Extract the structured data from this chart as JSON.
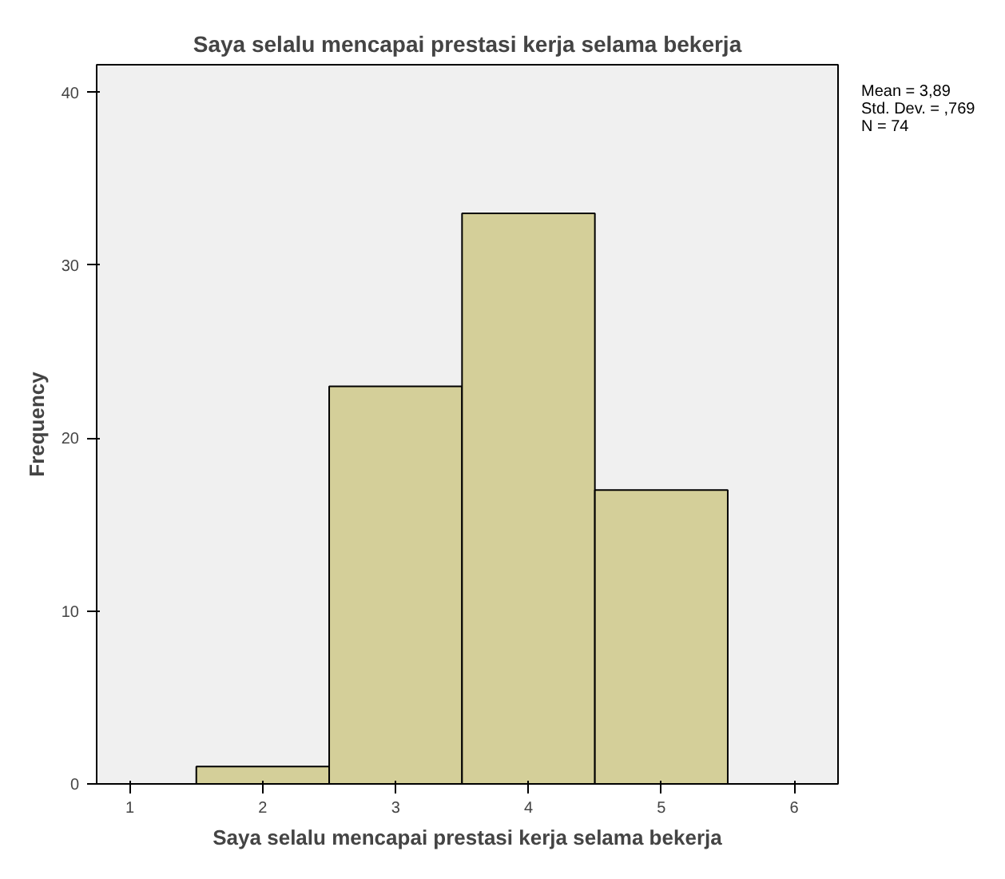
{
  "chart_data": {
    "type": "histogram",
    "title": "Saya selalu mencapai prestasi kerja selama bekerja",
    "xlabel": "Saya selalu mencapai prestasi kerja selama bekerja",
    "ylabel": "Frequency",
    "bins": [
      1.5,
      2.5,
      3.5,
      4.5,
      5.5
    ],
    "values": [
      1,
      23,
      33,
      17
    ],
    "color": "#d4cf99",
    "xlim": [
      0.75,
      6.33
    ],
    "ylim": [
      0,
      41.6
    ],
    "xticks": [
      1,
      2,
      3,
      4,
      5,
      6
    ],
    "yticks": [
      0,
      10,
      20,
      30,
      40
    ],
    "grid": false,
    "annotations": [
      "Mean = 3,89",
      "Std. Dev. = ,769",
      "N = 74"
    ]
  }
}
